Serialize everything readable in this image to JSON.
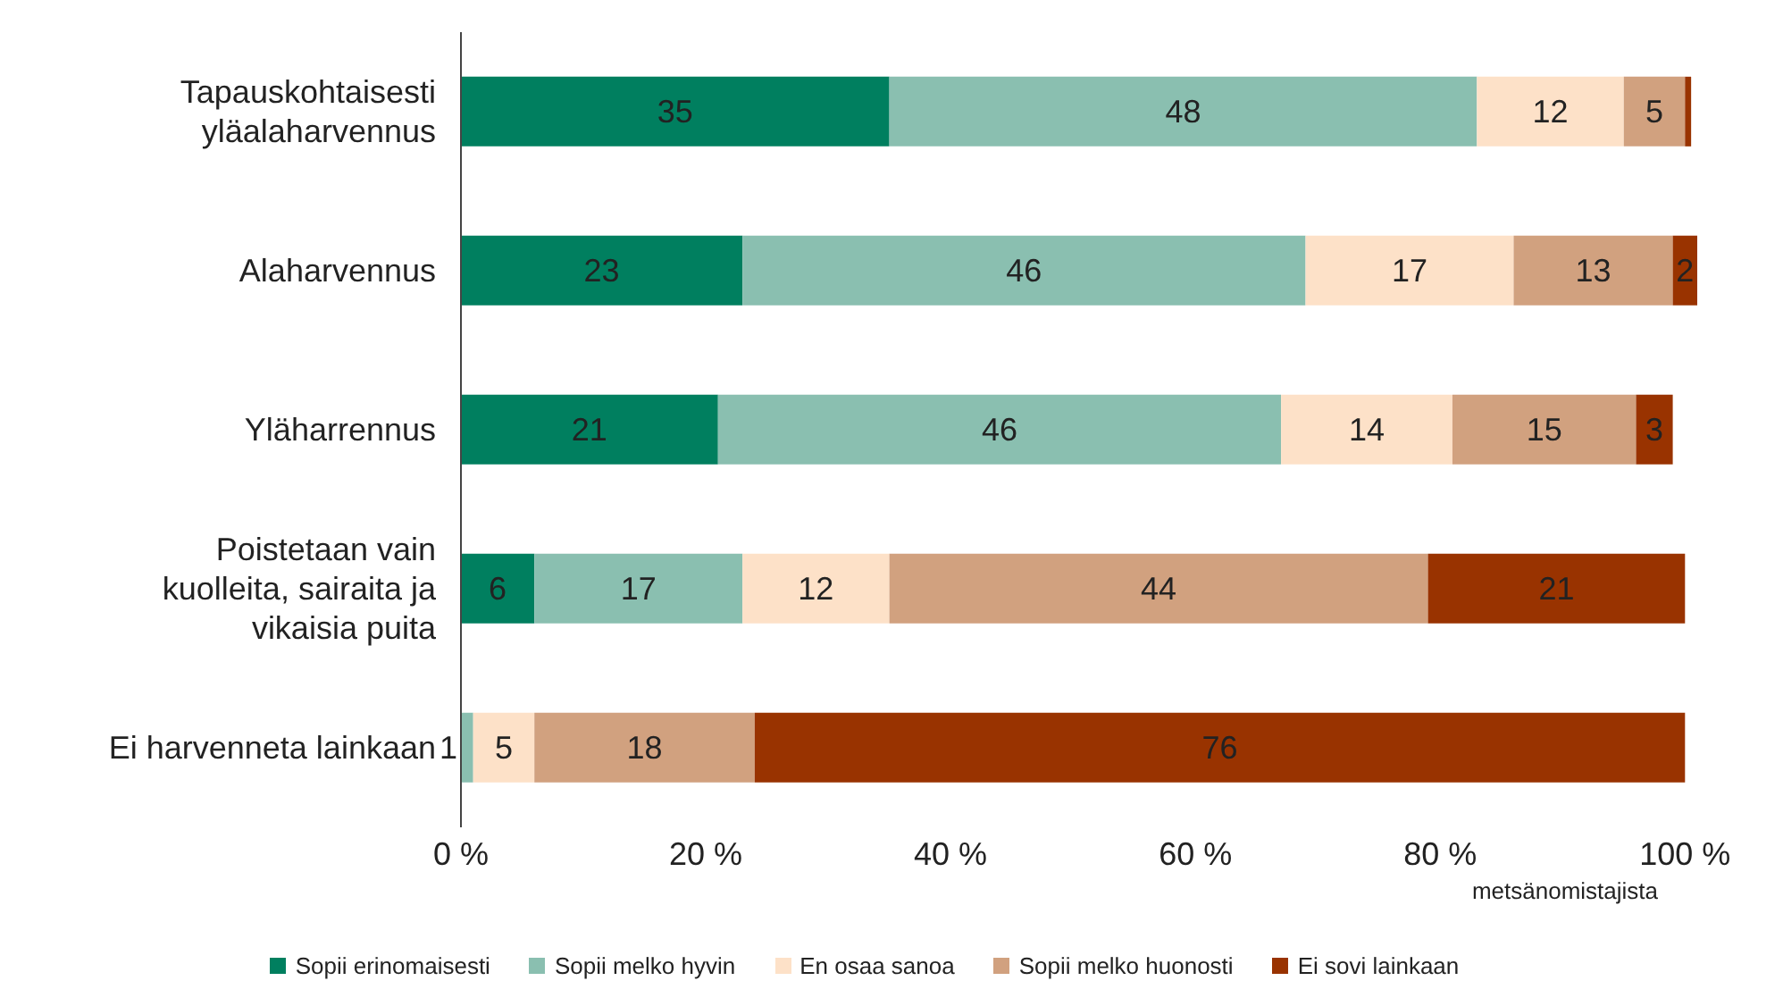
{
  "chart_data": {
    "type": "bar",
    "orientation": "horizontal",
    "stacked": true,
    "categories": [
      "Tapauskohtaisesti yläalaharvennus",
      "Alaharvennus",
      "Yläharrennus",
      "Poistetaan vain kuolleita, sairaita ja vikaisia puita",
      "Ei harvenneta lainkaan"
    ],
    "series": [
      {
        "name": "Sopii erinomaisesti",
        "color": "#007f5f",
        "values": [
          35,
          23,
          21,
          6,
          null
        ],
        "value_labels": [
          "35",
          "23",
          "21",
          "6",
          null
        ]
      },
      {
        "name": "Sopii melko hyvin",
        "color": "#8abfb0",
        "values": [
          48,
          46,
          46,
          17,
          1
        ],
        "value_labels": [
          "48",
          "46",
          "46",
          "17",
          "1"
        ]
      },
      {
        "name": "En osaa sanoa",
        "color": "#fde1c8",
        "values": [
          12,
          17,
          14,
          12,
          5
        ],
        "value_labels": [
          "12",
          "17",
          "14",
          "12",
          "5"
        ]
      },
      {
        "name": "Sopii melko huonosti",
        "color": "#d1a17f",
        "values": [
          5,
          13,
          15,
          44,
          18
        ],
        "value_labels": [
          "5",
          "13",
          "15",
          "44",
          "18"
        ]
      },
      {
        "name": "Ei sovi lainkaan",
        "color": "#993300",
        "values": [
          0.5,
          2,
          3,
          21,
          76
        ],
        "value_labels": [
          null,
          "2",
          "3",
          "21",
          "76"
        ]
      }
    ],
    "xlim": [
      0,
      101
    ],
    "xticks": [
      {
        "value": 0,
        "label": "0 %"
      },
      {
        "value": 20,
        "label": "20 %"
      },
      {
        "value": 40,
        "label": "40 %"
      },
      {
        "value": 60,
        "label": "60 %"
      },
      {
        "value": 80,
        "label": "80 %"
      },
      {
        "value": 100,
        "label": "100 %"
      }
    ],
    "xlabel": "metsänomistajista",
    "legend": "bottom"
  }
}
